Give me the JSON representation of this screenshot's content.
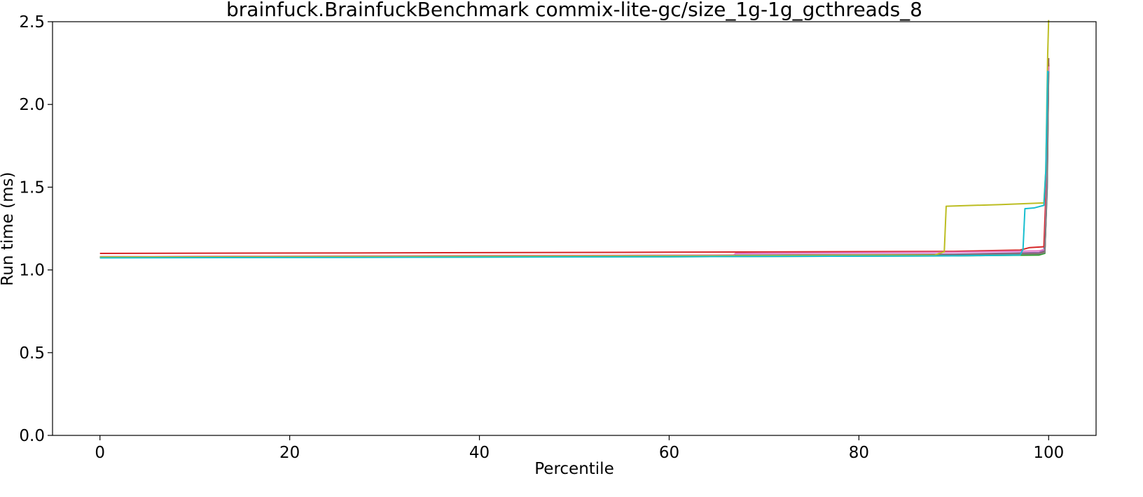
{
  "chart_data": {
    "type": "line",
    "title": "brainfuck.BrainfuckBenchmark commix-lite-gc/size_1g-1g_gcthreads_8",
    "xlabel": "Percentile",
    "ylabel": "Run time (ms)",
    "xlim": [
      -5,
      105
    ],
    "ylim": [
      0,
      2.5
    ],
    "xticks": [
      0,
      20,
      40,
      60,
      80,
      100
    ],
    "yticks": [
      0.0,
      0.5,
      1.0,
      1.5,
      2.0,
      2.5
    ],
    "xtick_labels": [
      "0",
      "20",
      "40",
      "60",
      "80",
      "100"
    ],
    "ytick_labels": [
      "0.0",
      "0.5",
      "1.0",
      "1.5",
      "2.0",
      "2.5"
    ],
    "grid": false,
    "legend": "none",
    "series": [
      {
        "color": "#1f77b4",
        "points": [
          [
            0,
            1.075
          ],
          [
            30,
            1.078
          ],
          [
            60,
            1.082
          ],
          [
            90,
            1.088
          ],
          [
            99,
            1.095
          ],
          [
            99.5,
            1.1
          ],
          [
            99.8,
            1.5
          ],
          [
            99.95,
            2.2
          ],
          [
            100,
            2.22
          ]
        ]
      },
      {
        "color": "#ff7f0e",
        "points": [
          [
            0,
            1.08
          ],
          [
            30,
            1.083
          ],
          [
            60,
            1.087
          ],
          [
            90,
            1.093
          ],
          [
            99,
            1.1
          ],
          [
            99.6,
            1.11
          ],
          [
            99.85,
            1.6
          ],
          [
            100,
            2.25
          ]
        ]
      },
      {
        "color": "#2ca02c",
        "points": [
          [
            0,
            1.075
          ],
          [
            30,
            1.077
          ],
          [
            60,
            1.08
          ],
          [
            90,
            1.085
          ],
          [
            99,
            1.09
          ],
          [
            99.6,
            1.1
          ],
          [
            99.85,
            1.55
          ],
          [
            100,
            2.2
          ]
        ]
      },
      {
        "color": "#d62728",
        "points": [
          [
            0,
            1.1
          ],
          [
            30,
            1.103
          ],
          [
            60,
            1.107
          ],
          [
            90,
            1.112
          ],
          [
            97,
            1.12
          ],
          [
            98,
            1.135
          ],
          [
            99.5,
            1.14
          ],
          [
            99.8,
            1.6
          ],
          [
            100,
            2.24
          ]
        ]
      },
      {
        "color": "#9467bd",
        "points": [
          [
            0,
            1.08
          ],
          [
            30,
            1.084
          ],
          [
            60,
            1.088
          ],
          [
            90,
            1.095
          ],
          [
            99,
            1.105
          ],
          [
            99.6,
            1.12
          ],
          [
            99.85,
            1.5
          ],
          [
            100,
            2.21
          ]
        ]
      },
      {
        "color": "#8c564b",
        "points": [
          [
            0,
            1.078
          ],
          [
            30,
            1.081
          ],
          [
            60,
            1.085
          ],
          [
            90,
            1.092
          ],
          [
            99,
            1.1
          ],
          [
            99.6,
            1.11
          ],
          [
            99.85,
            1.55
          ],
          [
            100,
            2.28
          ]
        ]
      },
      {
        "color": "#e377c2",
        "points": [
          [
            0,
            1.08
          ],
          [
            30,
            1.085
          ],
          [
            66.8,
            1.09
          ],
          [
            67,
            1.1
          ],
          [
            90,
            1.107
          ],
          [
            99,
            1.115
          ],
          [
            99.6,
            1.125
          ],
          [
            99.85,
            1.6
          ],
          [
            100,
            2.23
          ]
        ]
      },
      {
        "color": "#7f7f7f",
        "points": [
          [
            0,
            1.077
          ],
          [
            30,
            1.08
          ],
          [
            60,
            1.084
          ],
          [
            90,
            1.09
          ],
          [
            99,
            1.097
          ],
          [
            99.6,
            1.105
          ],
          [
            99.85,
            1.5
          ],
          [
            100,
            2.2
          ]
        ]
      },
      {
        "color": "#bcbd22",
        "points": [
          [
            0,
            1.078
          ],
          [
            30,
            1.081
          ],
          [
            60,
            1.085
          ],
          [
            88,
            1.09
          ],
          [
            89,
            1.11
          ],
          [
            89.2,
            1.385
          ],
          [
            95,
            1.395
          ],
          [
            99.5,
            1.405
          ],
          [
            99.7,
            1.6
          ],
          [
            99.9,
            2.3
          ],
          [
            100,
            2.51
          ]
        ]
      },
      {
        "color": "#17becf",
        "points": [
          [
            0,
            1.073
          ],
          [
            30,
            1.076
          ],
          [
            60,
            1.08
          ],
          [
            90,
            1.085
          ],
          [
            97,
            1.09
          ],
          [
            97.3,
            1.125
          ],
          [
            97.5,
            1.37
          ],
          [
            98.5,
            1.375
          ],
          [
            99.5,
            1.39
          ],
          [
            99.7,
            1.6
          ],
          [
            99.9,
            2.2
          ],
          [
            100,
            2.19
          ]
        ]
      }
    ]
  }
}
